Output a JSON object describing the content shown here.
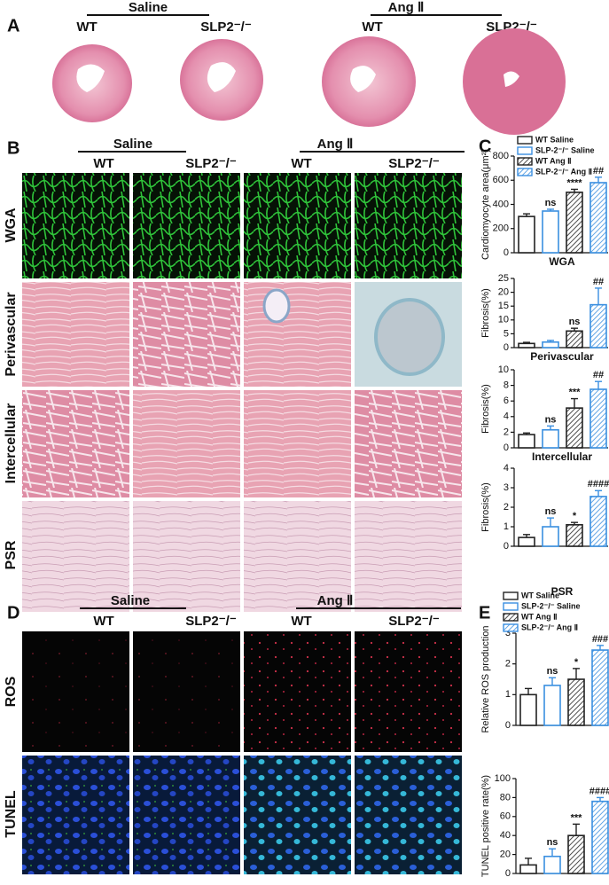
{
  "panel_labels": [
    "A",
    "B",
    "C",
    "D",
    "E"
  ],
  "panel_a": {
    "groups": [
      "Saline",
      "Ang Ⅱ"
    ],
    "columns": [
      "WT",
      "SLP2⁻/⁻",
      "WT",
      "SLP2⁻/⁻"
    ]
  },
  "panel_b": {
    "groups": [
      "Saline",
      "Ang Ⅱ"
    ],
    "columns": [
      "WT",
      "SLP2⁻/⁻",
      "WT",
      "SLP2⁻/⁻"
    ],
    "rows": [
      "WGA",
      "Perivascular",
      "Intercellular",
      "PSR"
    ]
  },
  "panel_d": {
    "groups": [
      "Saline",
      "Ang Ⅱ"
    ],
    "columns": [
      "WT",
      "SLP2⁻/⁻",
      "WT",
      "SLP2⁻/⁻"
    ],
    "rows": [
      "ROS",
      "TUNEL"
    ]
  },
  "chart_data": [
    {
      "type": "bar",
      "ylabel": "Cardiomyocyte area(μm²)",
      "xlabel": "WGA",
      "ylim": [
        0,
        800
      ],
      "yticks": [
        0,
        200,
        400,
        600,
        800
      ],
      "legend": "top",
      "series": [
        {
          "name": "WT Saline",
          "color": "#222222",
          "hatch": false,
          "values": [
            300
          ],
          "errors": [
            22
          ]
        },
        {
          "name": "SLP-2⁻/⁻ Saline",
          "color": "#3a8fe0",
          "hatch": false,
          "values": [
            345
          ],
          "errors": [
            15
          ]
        },
        {
          "name": "WT Ang Ⅱ",
          "color": "#222222",
          "hatch": true,
          "values": [
            500
          ],
          "errors": [
            25
          ]
        },
        {
          "name": "SLP-2⁻/⁻ Ang Ⅱ",
          "color": "#3a8fe0",
          "hatch": true,
          "values": [
            580
          ],
          "errors": [
            45
          ]
        }
      ],
      "annotations": [
        null,
        "ns",
        "****",
        "##"
      ]
    },
    {
      "type": "bar",
      "ylabel": "Fibrosis(%)",
      "xlabel": "Perivascular",
      "ylim": [
        0,
        25
      ],
      "yticks": [
        0,
        5,
        10,
        15,
        20,
        25
      ],
      "series": [
        {
          "color": "#222222",
          "hatch": false,
          "values": [
            1.5
          ],
          "errors": [
            0.4
          ]
        },
        {
          "color": "#3a8fe0",
          "hatch": false,
          "values": [
            2
          ],
          "errors": [
            0.6
          ]
        },
        {
          "color": "#222222",
          "hatch": true,
          "values": [
            6
          ],
          "errors": [
            1
          ]
        },
        {
          "color": "#3a8fe0",
          "hatch": true,
          "values": [
            15.5
          ],
          "errors": [
            6
          ]
        }
      ],
      "annotations": [
        null,
        null,
        "ns",
        "##"
      ]
    },
    {
      "type": "bar",
      "ylabel": "Fibrosis(%)",
      "xlabel": "Intercellular",
      "ylim": [
        0,
        10
      ],
      "yticks": [
        0,
        2,
        4,
        6,
        8,
        10
      ],
      "series": [
        {
          "color": "#222222",
          "hatch": false,
          "values": [
            1.7
          ],
          "errors": [
            0.2
          ]
        },
        {
          "color": "#3a8fe0",
          "hatch": false,
          "values": [
            2.3
          ],
          "errors": [
            0.5
          ]
        },
        {
          "color": "#222222",
          "hatch": true,
          "values": [
            5.1
          ],
          "errors": [
            1.2
          ]
        },
        {
          "color": "#3a8fe0",
          "hatch": true,
          "values": [
            7.5
          ],
          "errors": [
            1
          ]
        }
      ],
      "annotations": [
        null,
        "ns",
        "***",
        "##"
      ]
    },
    {
      "type": "bar",
      "ylabel": "Fibrosis(%)",
      "xlabel": "PSR",
      "ylim": [
        0,
        4
      ],
      "yticks": [
        0,
        1,
        2,
        3,
        4
      ],
      "series": [
        {
          "color": "#222222",
          "hatch": false,
          "values": [
            0.45
          ],
          "errors": [
            0.15
          ]
        },
        {
          "color": "#3a8fe0",
          "hatch": false,
          "values": [
            1
          ],
          "errors": [
            0.45
          ]
        },
        {
          "color": "#222222",
          "hatch": true,
          "values": [
            1.1
          ],
          "errors": [
            0.12
          ]
        },
        {
          "color": "#3a8fe0",
          "hatch": true,
          "values": [
            2.55
          ],
          "errors": [
            0.3
          ]
        }
      ],
      "annotations": [
        null,
        "ns",
        "*",
        "####"
      ]
    },
    {
      "type": "bar",
      "ylabel": "Relative ROS production",
      "ylim": [
        0,
        3
      ],
      "yticks": [
        0,
        1,
        2,
        3
      ],
      "legend": "top",
      "series": [
        {
          "name": "WT Saline",
          "color": "#222222",
          "hatch": false,
          "values": [
            1
          ],
          "errors": [
            0.2
          ]
        },
        {
          "name": "SLP-2⁻/⁻ Saline",
          "color": "#3a8fe0",
          "hatch": false,
          "values": [
            1.3
          ],
          "errors": [
            0.25
          ]
        },
        {
          "name": "WT Ang Ⅱ",
          "color": "#222222",
          "hatch": true,
          "values": [
            1.5
          ],
          "errors": [
            0.35
          ]
        },
        {
          "name": "SLP-2⁻/⁻ Ang Ⅱ",
          "color": "#3a8fe0",
          "hatch": true,
          "values": [
            2.45
          ],
          "errors": [
            0.15
          ]
        }
      ],
      "annotations": [
        null,
        "ns",
        "*",
        "###"
      ]
    },
    {
      "type": "bar",
      "ylabel": "TUNEL positive rate(%)",
      "ylim": [
        0,
        100
      ],
      "yticks": [
        0,
        20,
        40,
        60,
        80,
        100
      ],
      "series": [
        {
          "color": "#222222",
          "hatch": false,
          "values": [
            9
          ],
          "errors": [
            7
          ]
        },
        {
          "color": "#3a8fe0",
          "hatch": false,
          "values": [
            18
          ],
          "errors": [
            8
          ]
        },
        {
          "color": "#222222",
          "hatch": true,
          "values": [
            40
          ],
          "errors": [
            12
          ]
        },
        {
          "color": "#3a8fe0",
          "hatch": true,
          "values": [
            76
          ],
          "errors": [
            4
          ]
        }
      ],
      "annotations": [
        null,
        "ns",
        "***",
        "####"
      ]
    }
  ]
}
